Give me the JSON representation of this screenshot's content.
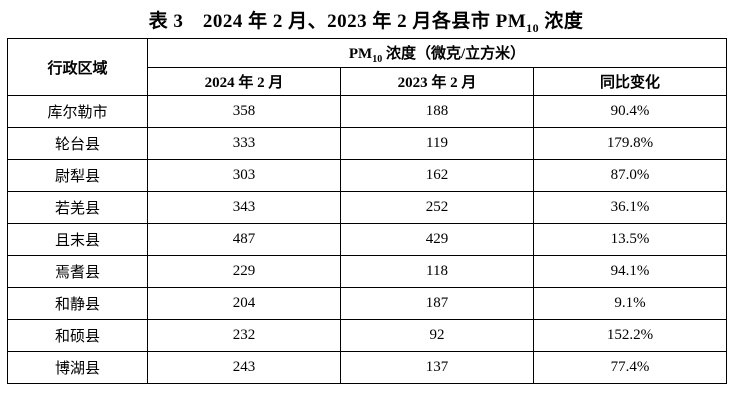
{
  "title": {
    "prefix": "表 3　2024 年 2 月、2023 年 2 月各县市 PM",
    "sub": "10",
    "suffix": " 浓度"
  },
  "header": {
    "region": "行政区域",
    "group_prefix": "PM",
    "group_sub": "10",
    "group_suffix": " 浓度（微克/立方米）",
    "col_2024": "2024 年 2 月",
    "col_2023": "2023 年 2 月",
    "col_change": "同比变化"
  },
  "rows": [
    {
      "region": "库尔勒市",
      "v2024": "358",
      "v2023": "188",
      "change": "90.4%"
    },
    {
      "region": "轮台县",
      "v2024": "333",
      "v2023": "119",
      "change": "179.8%"
    },
    {
      "region": "尉犁县",
      "v2024": "303",
      "v2023": "162",
      "change": "87.0%"
    },
    {
      "region": "若羌县",
      "v2024": "343",
      "v2023": "252",
      "change": "36.1%"
    },
    {
      "region": "且末县",
      "v2024": "487",
      "v2023": "429",
      "change": "13.5%"
    },
    {
      "region": "焉耆县",
      "v2024": "229",
      "v2023": "118",
      "change": "94.1%"
    },
    {
      "region": "和静县",
      "v2024": "204",
      "v2023": "187",
      "change": "9.1%"
    },
    {
      "region": "和硕县",
      "v2024": "232",
      "v2023": "92",
      "change": "152.2%"
    },
    {
      "region": "博湖县",
      "v2024": "243",
      "v2023": "137",
      "change": "77.4%"
    }
  ]
}
